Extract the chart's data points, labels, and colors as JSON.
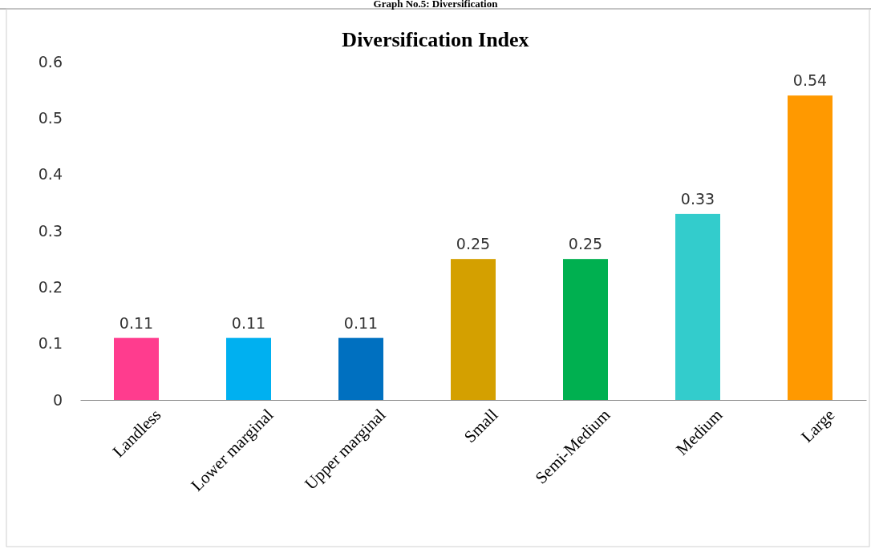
{
  "chart_data": {
    "type": "bar",
    "title": "Diversification Index",
    "annotations": [
      "Graph No.5: Diversification"
    ],
    "categories": [
      "Landless",
      "Lower marginal",
      "Upper marginal",
      "Small",
      "Semi-Medium",
      "Medium",
      "Large"
    ],
    "values": [
      0.11,
      0.11,
      0.11,
      0.25,
      0.25,
      0.33,
      0.54
    ],
    "colors": [
      "#ff3c8e",
      "#00b0f0",
      "#0070c0",
      "#d4a000",
      "#00b050",
      "#33cccc",
      "#ff9900"
    ],
    "ylim": [
      0,
      0.6
    ],
    "yticks": [
      0,
      0.1,
      0.2,
      0.3,
      0.4,
      0.5,
      0.6
    ],
    "data_labels": true
  }
}
